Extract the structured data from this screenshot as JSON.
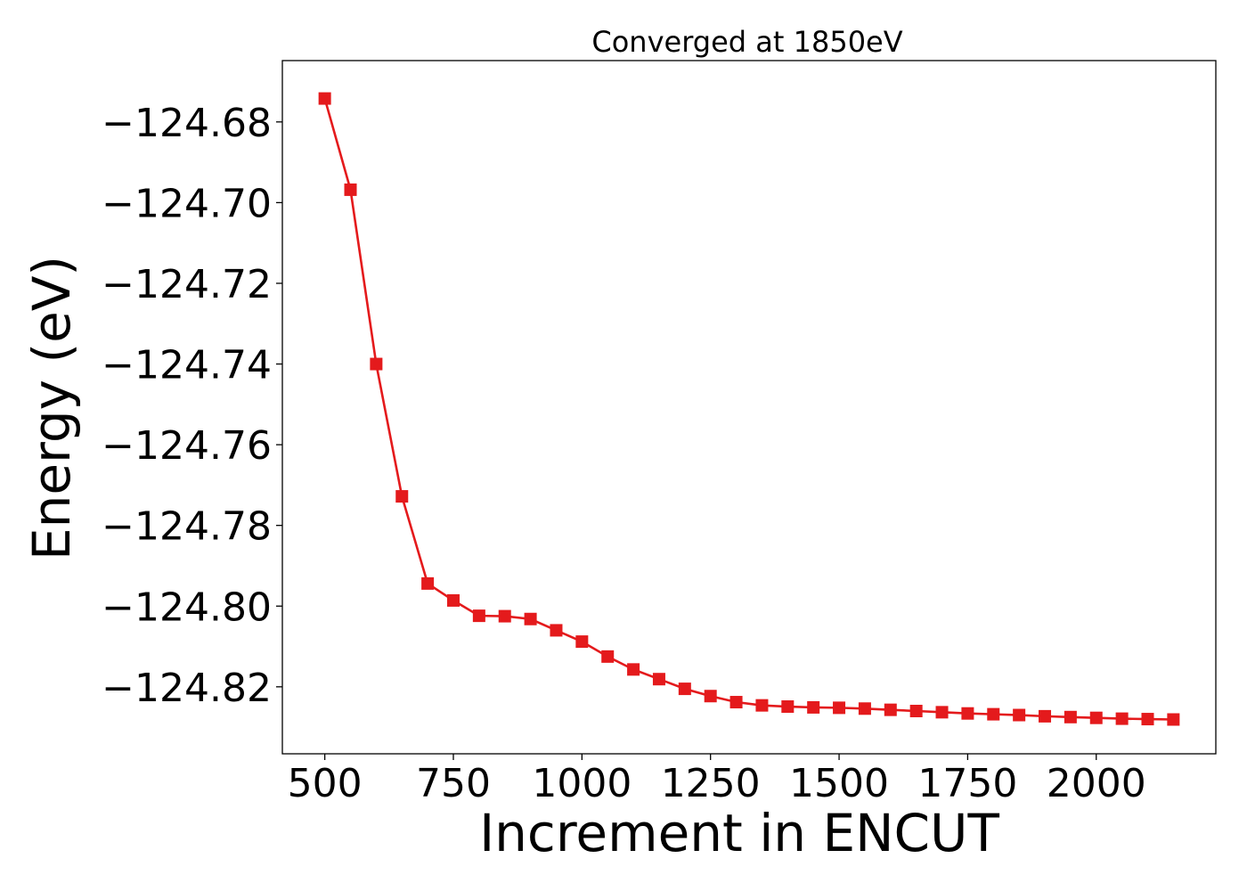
{
  "chart_data": {
    "type": "line",
    "title": "Converged at 1850eV",
    "xlabel": "Increment in ENCUT",
    "ylabel": "Energy (eV)",
    "xlim": [
      417.5,
      2232.5
    ],
    "ylim": [
      -124.8366,
      -124.6648
    ],
    "xticks": [
      500,
      750,
      1000,
      1250,
      1500,
      1750,
      2000
    ],
    "xtick_labels": [
      "500",
      "750",
      "1000",
      "1250",
      "1500",
      "1750",
      "2000"
    ],
    "yticks": [
      -124.82,
      -124.8,
      -124.78,
      -124.76,
      -124.74,
      -124.72,
      -124.7,
      -124.68
    ],
    "ytick_labels": [
      "−124.82",
      "−124.80",
      "−124.78",
      "−124.76",
      "−124.74",
      "−124.72",
      "−124.70",
      "−124.68"
    ],
    "grid": false,
    "legend": "none",
    "series": [
      {
        "color": "#e41a1c",
        "marker": "square",
        "x": [
          500,
          550,
          600,
          650,
          700,
          750,
          800,
          850,
          900,
          950,
          1000,
          1050,
          1100,
          1150,
          1200,
          1250,
          1300,
          1350,
          1400,
          1450,
          1500,
          1550,
          1600,
          1650,
          1700,
          1750,
          1800,
          1850,
          1900,
          1950,
          2000,
          2050,
          2100,
          2150
        ],
        "y": [
          -124.6742,
          -124.6968,
          -124.74,
          -124.7728,
          -124.7944,
          -124.7986,
          -124.8024,
          -124.8025,
          -124.8032,
          -124.806,
          -124.8088,
          -124.8125,
          -124.8157,
          -124.8181,
          -124.8205,
          -124.8223,
          -124.8238,
          -124.8246,
          -124.8249,
          -124.8251,
          -124.8252,
          -124.8254,
          -124.8257,
          -124.826,
          -124.8263,
          -124.8266,
          -124.8268,
          -124.827,
          -124.8273,
          -124.8275,
          -124.8277,
          -124.8279,
          -124.828,
          -124.8281
        ]
      }
    ]
  }
}
